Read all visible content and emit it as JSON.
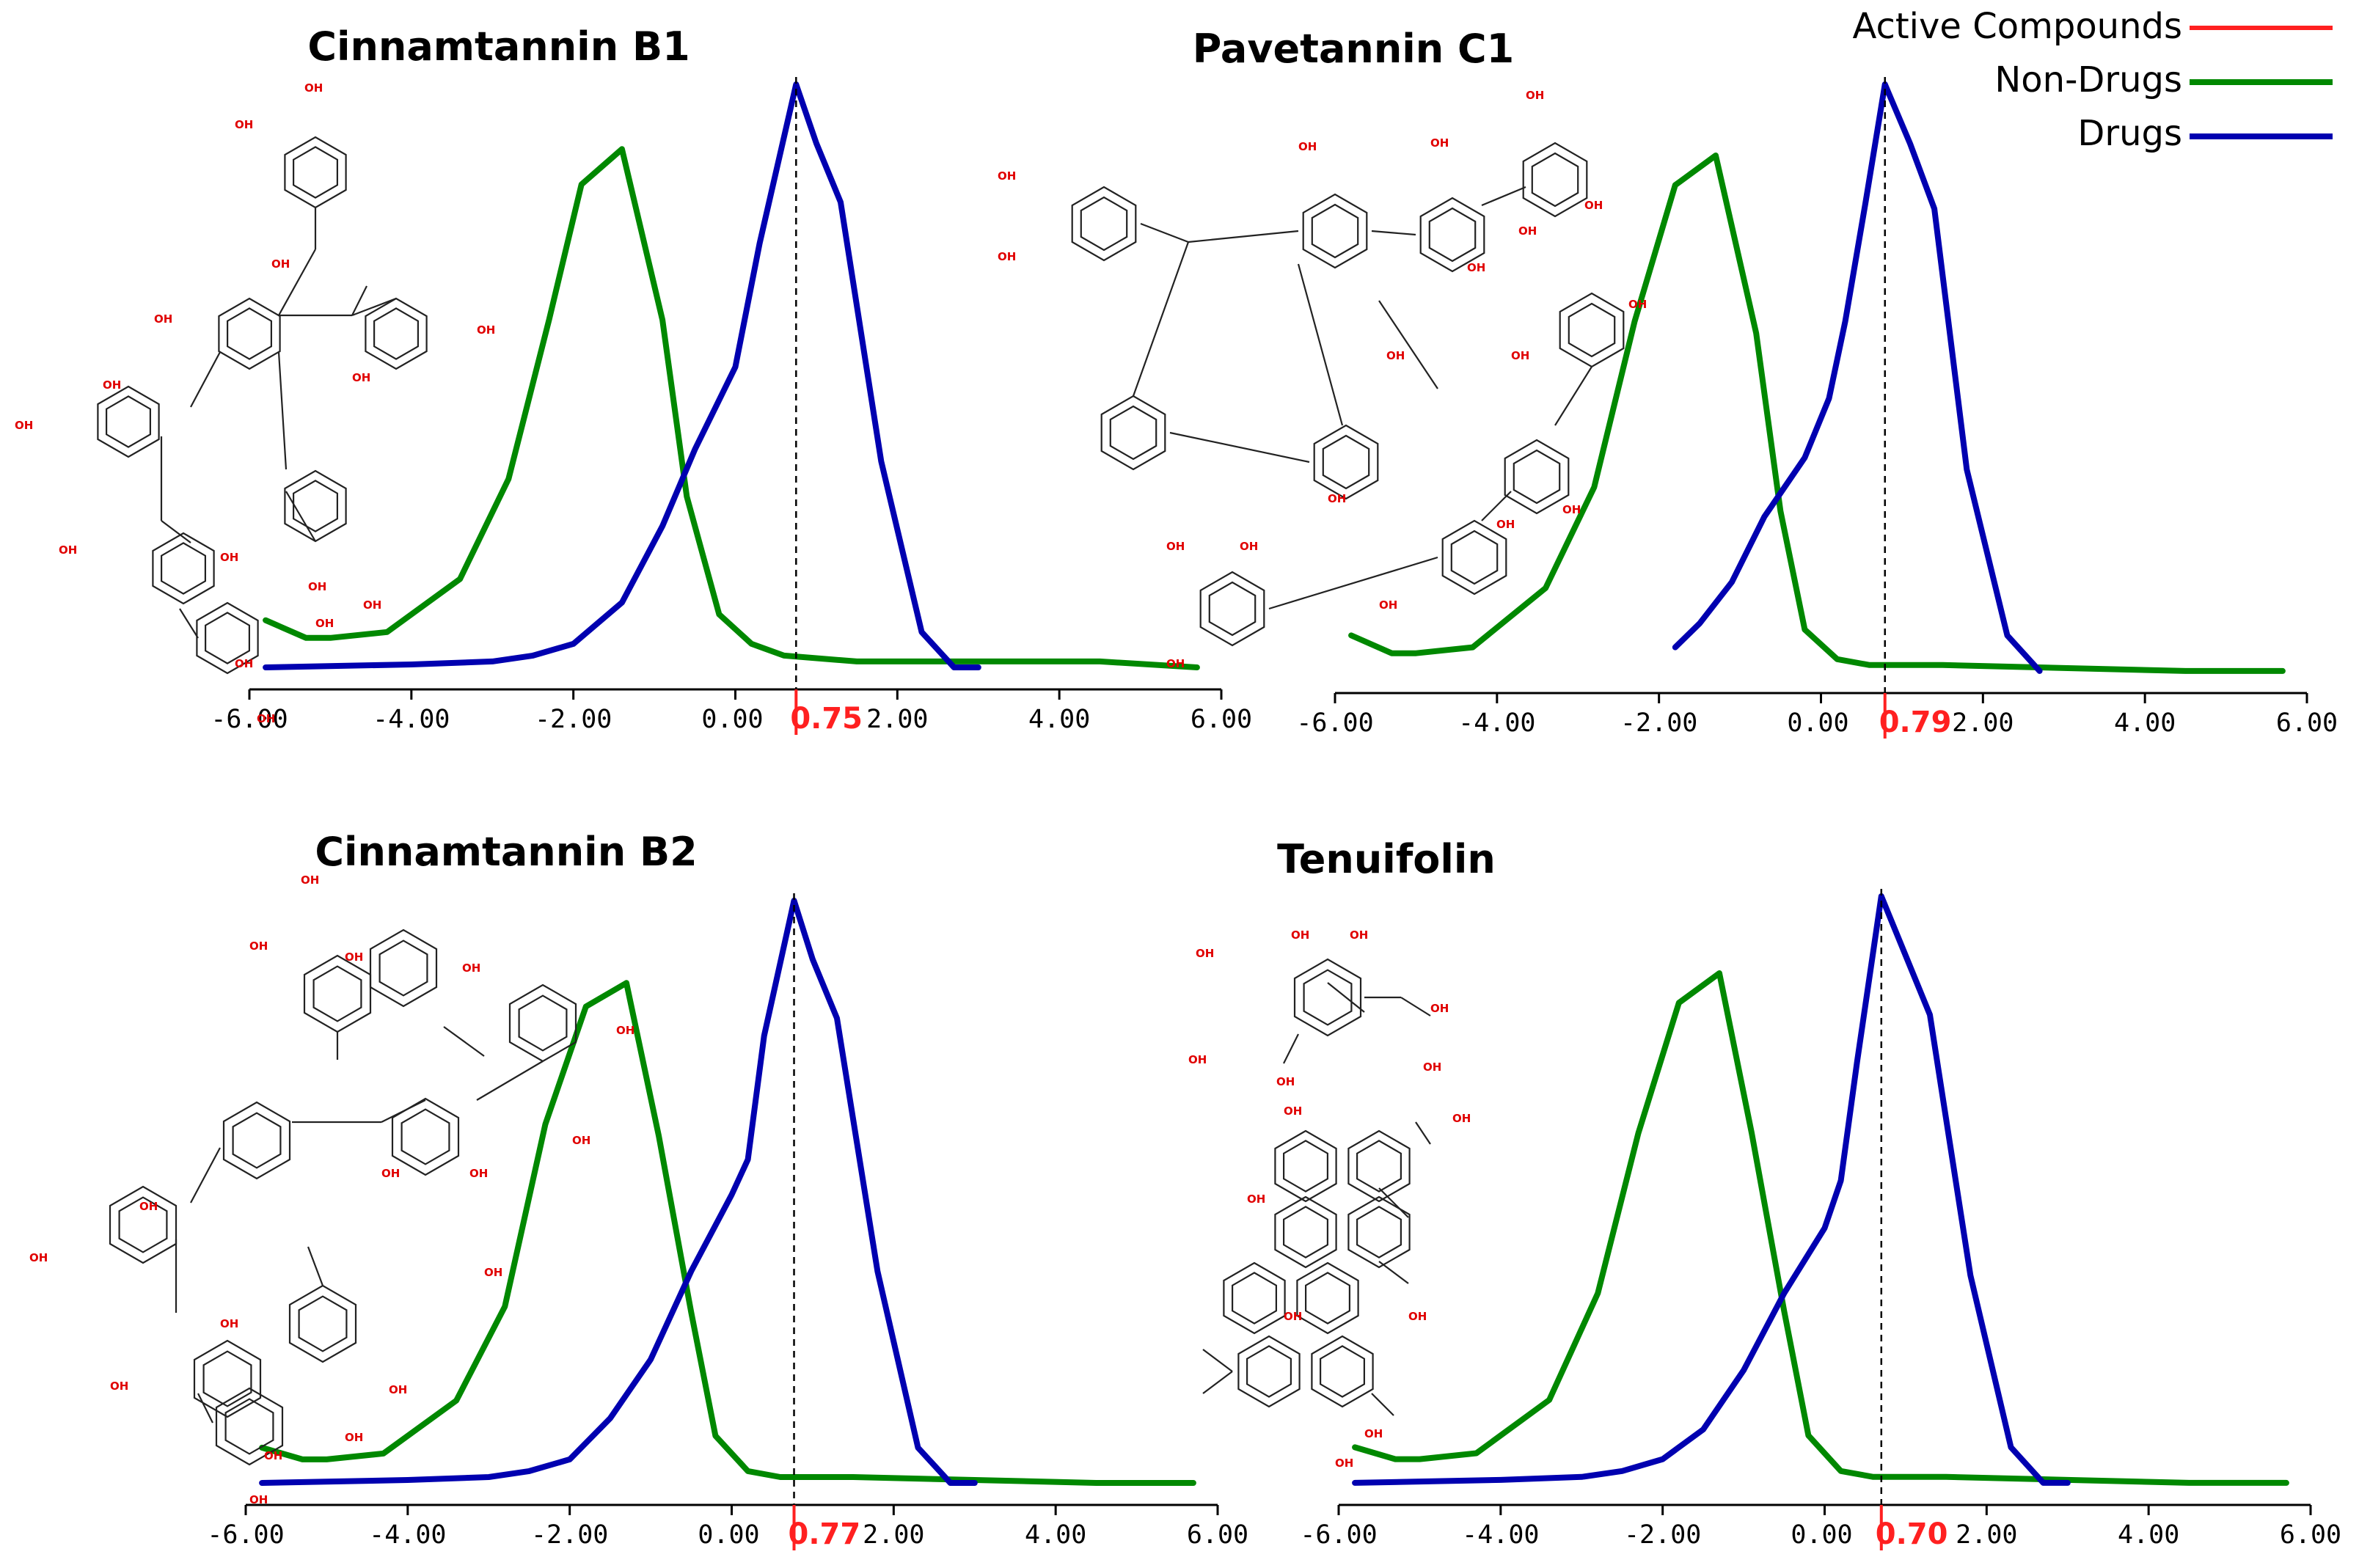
{
  "colors": {
    "active": "#ff2020",
    "non_drugs": "#008800",
    "drugs": "#0000b0",
    "axis": "#000000"
  },
  "legend": {
    "items": [
      {
        "label": "Active Compounds",
        "color": "#ff2020"
      },
      {
        "label": "Non-Drugs",
        "color": "#008800"
      },
      {
        "label": "Drugs",
        "color": "#0000b0"
      }
    ]
  },
  "chart_data": [
    {
      "type": "line",
      "title": "Cinnamtannin B1",
      "xlim": [
        -6,
        6
      ],
      "tick_labels": [
        "-6.00",
        "-4.00",
        "-2.00",
        "0.00",
        "2.00",
        "4.00",
        "6.00"
      ],
      "active_value": 0.75,
      "active_label": "0.75",
      "series": [
        {
          "name": "Non-Drugs",
          "x": [
            -5.8,
            -5.3,
            -5.0,
            -4.3,
            -3.4,
            -2.8,
            -2.3,
            -1.9,
            -1.4,
            -0.9,
            -0.6,
            -0.2,
            0.2,
            0.6,
            1.5,
            3.0,
            4.5,
            5.7
          ],
          "y": [
            0.09,
            0.06,
            0.06,
            0.07,
            0.16,
            0.33,
            0.6,
            0.83,
            0.89,
            0.6,
            0.3,
            0.1,
            0.05,
            0.03,
            0.02,
            0.02,
            0.02,
            0.01
          ]
        },
        {
          "name": "Drugs",
          "x": [
            -5.8,
            -4.0,
            -3.0,
            -2.5,
            -2.0,
            -1.4,
            -0.9,
            -0.5,
            0.0,
            0.3,
            0.75,
            1.0,
            1.3,
            1.8,
            2.3,
            2.7,
            3.0
          ],
          "y": [
            0.01,
            0.015,
            0.02,
            0.03,
            0.05,
            0.12,
            0.25,
            0.38,
            0.52,
            0.73,
            1.0,
            0.9,
            0.8,
            0.36,
            0.07,
            0.01,
            0.01
          ]
        }
      ]
    },
    {
      "type": "line",
      "title": "Pavetannin C1",
      "xlim": [
        -6,
        6
      ],
      "tick_labels": [
        "-6.00",
        "-4.00",
        "-2.00",
        "0.00",
        "2.00",
        "4.00",
        "6.00"
      ],
      "active_value": 0.79,
      "active_label": "0.79",
      "series": [
        {
          "name": "Non-Drugs",
          "x": [
            -5.8,
            -5.3,
            -5.0,
            -4.3,
            -3.4,
            -2.8,
            -2.3,
            -1.8,
            -1.3,
            -0.8,
            -0.5,
            -0.2,
            0.2,
            0.6,
            1.5,
            3.0,
            4.5,
            5.7
          ],
          "y": [
            0.07,
            0.04,
            0.04,
            0.05,
            0.15,
            0.32,
            0.6,
            0.83,
            0.88,
            0.58,
            0.28,
            0.08,
            0.03,
            0.02,
            0.02,
            0.015,
            0.01,
            0.01
          ]
        },
        {
          "name": "Drugs",
          "x": [
            -1.8,
            -1.5,
            -1.1,
            -0.7,
            -0.2,
            0.1,
            0.3,
            0.55,
            0.79,
            1.1,
            1.4,
            1.8,
            2.3,
            2.7
          ],
          "y": [
            0.05,
            0.09,
            0.16,
            0.27,
            0.37,
            0.47,
            0.6,
            0.8,
            1.0,
            0.9,
            0.79,
            0.35,
            0.07,
            0.01
          ]
        }
      ]
    },
    {
      "type": "line",
      "title": "Cinnamtannin B2",
      "xlim": [
        -6,
        6
      ],
      "tick_labels": [
        "-6.00",
        "-4.00",
        "-2.00",
        "0.00",
        "2.00",
        "4.00",
        "6.00"
      ],
      "active_value": 0.77,
      "active_label": "0.77",
      "series": [
        {
          "name": "Non-Drugs",
          "x": [
            -5.8,
            -5.3,
            -5.0,
            -4.3,
            -3.4,
            -2.8,
            -2.3,
            -1.8,
            -1.3,
            -0.9,
            -0.5,
            -0.2,
            0.2,
            0.6,
            1.5,
            3.0,
            4.5,
            5.7
          ],
          "y": [
            0.07,
            0.05,
            0.05,
            0.06,
            0.15,
            0.31,
            0.62,
            0.82,
            0.86,
            0.6,
            0.3,
            0.09,
            0.03,
            0.02,
            0.02,
            0.015,
            0.01,
            0.01
          ]
        },
        {
          "name": "Drugs",
          "x": [
            -5.8,
            -4.0,
            -3.0,
            -2.5,
            -2.0,
            -1.5,
            -1.0,
            -0.5,
            0.0,
            0.2,
            0.4,
            0.77,
            1.0,
            1.3,
            1.8,
            2.3,
            2.7,
            3.0
          ],
          "y": [
            0.01,
            0.015,
            0.02,
            0.03,
            0.05,
            0.12,
            0.22,
            0.37,
            0.5,
            0.56,
            0.77,
            1.0,
            0.9,
            0.8,
            0.37,
            0.07,
            0.01,
            0.01
          ]
        }
      ]
    },
    {
      "type": "line",
      "title": "Tenuifolin",
      "xlim": [
        -6,
        6
      ],
      "tick_labels": [
        "-6.00",
        "-4.00",
        "-2.00",
        "0.00",
        "2.00",
        "4.00",
        "6.00"
      ],
      "active_value": 0.7,
      "active_label": "0.70",
      "series": [
        {
          "name": "Non-Drugs",
          "x": [
            -5.8,
            -5.3,
            -5.0,
            -4.3,
            -3.4,
            -2.8,
            -2.3,
            -1.8,
            -1.3,
            -0.9,
            -0.5,
            -0.2,
            0.2,
            0.6,
            1.5,
            3.0,
            4.5,
            5.7
          ],
          "y": [
            0.07,
            0.05,
            0.05,
            0.06,
            0.15,
            0.33,
            0.6,
            0.82,
            0.87,
            0.6,
            0.3,
            0.09,
            0.03,
            0.02,
            0.02,
            0.015,
            0.01,
            0.01
          ]
        },
        {
          "name": "Drugs",
          "x": [
            -5.8,
            -4.0,
            -3.0,
            -2.5,
            -2.0,
            -1.5,
            -1.0,
            -0.5,
            0.0,
            0.2,
            0.4,
            0.7,
            1.0,
            1.3,
            1.8,
            2.3,
            2.7,
            3.0
          ],
          "y": [
            0.01,
            0.015,
            0.02,
            0.03,
            0.05,
            0.1,
            0.2,
            0.33,
            0.44,
            0.52,
            0.72,
            1.0,
            0.9,
            0.8,
            0.36,
            0.07,
            0.01,
            0.01
          ]
        }
      ]
    }
  ],
  "molecule_label": "OH"
}
